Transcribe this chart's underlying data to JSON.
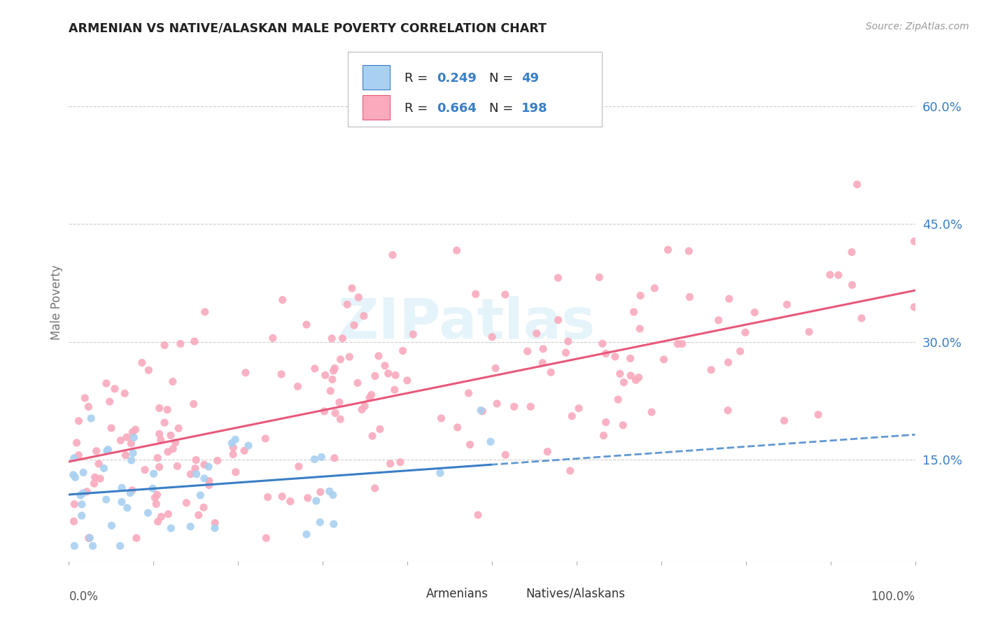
{
  "title": "ARMENIAN VS NATIVE/ALASKAN MALE POVERTY CORRELATION CHART",
  "source": "Source: ZipAtlas.com",
  "ylabel": "Male Poverty",
  "yticks": [
    0.15,
    0.3,
    0.45,
    0.6
  ],
  "ytick_labels": [
    "15.0%",
    "30.0%",
    "45.0%",
    "60.0%"
  ],
  "xrange": [
    0.0,
    1.0
  ],
  "yrange": [
    0.02,
    0.68
  ],
  "legend_armenians": "Armenians",
  "legend_natives": "Natives/Alaskans",
  "r_armenian": "0.249",
  "n_armenian": "49",
  "r_native": "0.664",
  "n_native": "198",
  "color_armenian_fill": "#A8D0F0",
  "color_native_fill": "#F9AABD",
  "color_blue": "#3A7EC6",
  "color_pink": "#E8587A",
  "color_text": "#333333",
  "color_label": "#777777",
  "color_grid": "#CCCCCC",
  "watermark_color": "#DAEEF8",
  "watermark_text": "ZIPatlas"
}
